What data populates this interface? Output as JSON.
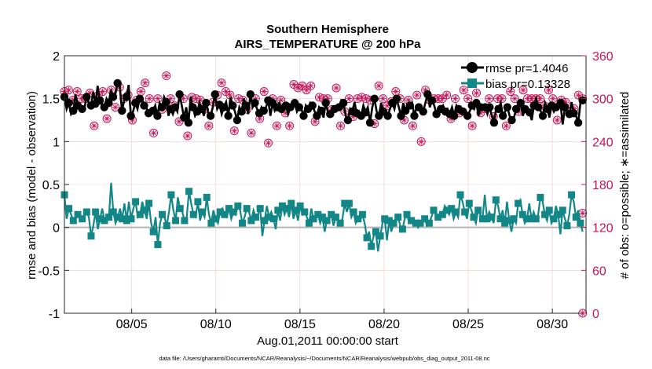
{
  "chart_data": {
    "type": "line",
    "title_line1": "Southern Hemisphere",
    "title_line2": "AIRS_TEMPERATURE @ 200 hPa",
    "xlabel": "Aug.01,2011 00:00:00 start",
    "ylabel_left": "rmse and bias (model - observation)",
    "ylabel_right": "# of obs: o=possible; ∗=assimilated",
    "footnote": "data file: /Users/gharamti/Documents/NCAR/Reanalysis/~/Documents/NCAR/Reanalysis/webpub/obs_diag_output_2011-08.nc",
    "x_range": [
      1,
      32
    ],
    "x_ticks": [
      5,
      10,
      15,
      20,
      25,
      30
    ],
    "x_tick_labels": [
      "08/05",
      "08/10",
      "08/15",
      "08/20",
      "08/25",
      "08/30"
    ],
    "ylim_left": [
      -1,
      2
    ],
    "y_ticks_left": [
      -1,
      -0.5,
      0,
      0.5,
      1,
      1.5,
      2
    ],
    "y_tick_labels_left": [
      "-1",
      "-0.5",
      "0",
      "0.5",
      "1",
      "1.5",
      "2"
    ],
    "ylim_right": [
      0,
      360
    ],
    "y_ticks_right": [
      0,
      60,
      120,
      180,
      240,
      300,
      360
    ],
    "y_tick_labels_right": [
      "0",
      "60",
      "120",
      "180",
      "240",
      "300",
      "360"
    ],
    "grid": true,
    "legend_placement": "top-right",
    "colors": {
      "rmse": "#000000",
      "bias": "#138787",
      "obs": "#c8145a",
      "zero_line": "#b4b4b4",
      "grid": "#f0c8c8"
    },
    "series": [
      {
        "name": "rmse pr=1.4046",
        "axis": "left",
        "values": [
          1.52,
          1.38,
          1.45,
          1.32,
          1.36,
          1.55,
          1.42,
          1.4,
          1.38,
          1.38,
          1.52,
          1.45,
          1.42,
          1.58,
          1.44,
          1.65,
          1.48,
          1.42,
          1.4,
          1.5,
          1.45,
          1.6,
          1.52,
          1.55,
          1.68,
          1.64,
          1.36,
          1.48,
          1.52,
          1.66,
          1.3,
          1.35,
          1.45,
          1.38,
          1.5,
          1.5,
          1.42,
          1.4,
          1.33,
          1.38,
          1.36,
          1.42,
          1.3,
          1.45,
          1.4,
          1.52,
          1.46,
          1.3,
          1.38,
          1.32,
          1.4,
          1.35,
          1.55,
          1.42,
          1.28,
          1.4,
          1.22,
          1.52,
          1.4,
          1.3,
          1.35,
          1.45,
          1.38,
          1.3,
          1.45,
          1.33,
          1.3,
          1.4,
          1.55,
          1.38,
          1.43,
          1.32,
          1.4,
          1.46,
          1.3,
          1.52,
          1.42,
          1.35,
          1.25,
          1.4,
          1.35,
          1.5,
          1.42,
          1.32,
          1.55,
          1.4,
          1.45,
          1.38,
          1.33,
          1.4,
          1.36,
          1.4,
          1.48,
          1.3,
          1.45,
          1.36,
          1.4,
          1.45,
          1.38,
          1.4,
          1.42,
          1.32,
          1.4,
          1.38,
          1.45,
          1.35,
          1.4,
          1.38,
          1.3,
          1.42,
          1.38,
          1.45,
          1.42,
          1.35,
          1.3,
          1.4,
          1.36,
          1.28,
          1.45,
          1.34,
          1.32,
          1.4,
          1.38,
          1.36,
          1.4,
          1.48,
          1.45,
          1.3,
          1.25,
          1.38,
          1.35,
          1.46,
          1.33,
          1.35,
          1.3,
          1.42,
          1.34,
          1.4,
          1.22,
          1.4,
          1.5,
          1.35,
          1.3,
          1.45,
          1.35,
          1.3,
          1.3,
          1.38,
          1.45,
          1.38,
          1.5,
          1.4,
          1.3,
          1.45,
          1.36,
          1.38,
          1.42,
          1.45,
          1.3,
          1.4,
          1.4,
          1.34,
          1.35,
          1.45,
          1.55,
          1.4,
          1.48,
          1.42,
          1.32,
          1.4,
          1.38,
          1.42,
          1.35,
          1.38,
          1.32,
          1.4,
          1.3,
          1.42,
          1.38,
          1.4,
          1.35,
          1.3,
          1.3,
          1.35,
          1.42,
          1.38,
          1.45,
          1.3,
          1.4,
          1.38,
          1.4,
          1.32,
          1.4,
          1.3,
          1.22,
          1.4,
          1.38,
          1.45,
          1.3,
          1.35,
          1.4,
          1.3,
          1.25,
          1.28,
          1.38,
          1.4,
          1.45,
          1.3,
          1.38,
          1.35,
          1.34,
          1.25,
          1.42,
          1.5,
          1.4,
          1.36,
          1.3,
          1.45,
          1.38,
          1.28,
          1.42,
          1.35,
          1.4,
          1.38,
          1.45,
          1.2,
          1.4,
          1.35,
          1.32,
          1.46,
          1.33,
          1.3,
          1.22,
          1.45,
          1.48
        ]
      },
      {
        "name": "bias pr=0.13328",
        "axis": "left",
        "values": [
          0.38,
          0.1,
          0.22,
          0.15,
          0.08,
          0.1,
          0.15,
          0.12,
          0.1,
          0.15,
          0.18,
          0.12,
          -0.1,
          0.02,
          0.18,
          -0.02,
          0.1,
          0.22,
          0.08,
          0.1,
          0.12,
          0.52,
          0.18,
          0.05,
          0.12,
          0.22,
          0.1,
          0.28,
          0.08,
          0.3,
          0.1,
          0.22,
          0.3,
          0.12,
          0.15,
          0.3,
          0.2,
          0.1,
          0.28,
          0.05,
          -0.05,
          0.12,
          -0.2,
          0.05,
          0.15,
          0.12,
          0.02,
          0.18,
          0.38,
          0.2,
          0.08,
          0.35,
          0.22,
          0.18,
          0.08,
          0.12,
          0.42,
          0.28,
          0.15,
          0.12,
          0.3,
          0.08,
          0.18,
          0.12,
          0.35,
          0.15,
          0.05,
          0.2,
          0.1,
          0.05,
          0.18,
          0.22,
          0.15,
          0.12,
          0.22,
          0.1,
          0.18,
          0.15,
          0.25,
          0.2,
          0.05,
          0.12,
          0.22,
          0.18,
          0.08,
          0.2,
          0.12,
          0.15,
          0.22,
          -0.1,
          0.08,
          0.25,
          0.12,
          0.18,
          0.1,
          -0.02,
          0.2,
          0.08,
          0.25,
          0.15,
          0.22,
          0.12,
          0.28,
          0.1,
          0.2,
          0.08,
          0.25,
          0.15,
          0.18,
          0.12,
          0.05,
          0.22,
          0.1,
          0.12,
          0.15,
          0.05,
          0.12,
          -0.05,
          0.08,
          0.1,
          0.15,
          0.02,
          0.12,
          0.08,
          0.05,
          0.1,
          0.28,
          0.18,
          0.28,
          0.12,
          0.18,
          0.05,
          0.1,
          0.08,
          0.15,
          0.05,
          -0.12,
          -0.05,
          -0.22,
          -0.1,
          -0.05,
          -0.28,
          -0.1,
          0.05,
          0.1,
          -0.15,
          0.08,
          -0.05,
          0.05,
          0.1,
          0.12,
          0.02,
          -0.02,
          0.1,
          0.15,
          0.05,
          0.08,
          0.02,
          0.05,
          0.0,
          0.05,
          0.08,
          0.1,
          0.02,
          0.05,
          0.12,
          0.2,
          0.15,
          0.12,
          0.1,
          0.15,
          0.25,
          0.2,
          0.15,
          0.22,
          0.1,
          0.18,
          0.12,
          0.38,
          0.3,
          0.18,
          0.1,
          0.28,
          0.2,
          0.12,
          0.05,
          0.2,
          0.15,
          0.1,
          0.38,
          0.1,
          0.18,
          0.12,
          0.05,
          0.32,
          0.25,
          0.1,
          0.2,
          0.05,
          0.3,
          0.08,
          -0.05,
          0.1,
          0.05,
          0.28,
          0.32,
          0.15,
          0.05,
          0.1,
          0.28,
          0.1,
          0.18,
          0.1,
          0.15,
          0.35,
          0.3,
          0.15,
          0.08,
          0.2,
          0.05,
          0.1,
          0.25,
          0.15,
          -0.08,
          0.2,
          0.1,
          0.02,
          0.15,
          0.38,
          0.3,
          0.12,
          0.2,
          0.05,
          -0.05
        ]
      },
      {
        "name": "obs possible",
        "axis": "right",
        "marker": "circle",
        "values": [
          310,
          242,
          312,
          305,
          298,
          300,
          310,
          268,
          300,
          328,
          300,
          268,
          308,
          302,
          262,
          300,
          305,
          236,
          310,
          278,
          272,
          318,
          312,
          268,
          288,
          300,
          316,
          262,
          300,
          282,
          305,
          325,
          270,
          252,
          298,
          300,
          310,
          270,
          322,
          285,
          300,
          312,
          252,
          312,
          300,
          306,
          285,
          298,
          332,
          310,
          300,
          280,
          290,
          300,
          268,
          314,
          300,
          292,
          248,
          310,
          302,
          268,
          300,
          312,
          298,
          300,
          285,
          270,
          262,
          300,
          295,
          252,
          305,
          300,
          322,
          260,
          310,
          308,
          305,
          300,
          255,
          312,
          300,
          320,
          298,
          300,
          285,
          300,
          252,
          305,
          300,
          285,
          272,
          282,
          310,
          318,
          238,
          262,
          300,
          292,
          262,
          305,
          298,
          308,
          280,
          270,
          262,
          300,
          320,
          302,
          315,
          300,
          318,
          280,
          312,
          298,
          318,
          305,
          268,
          300,
          302,
          310,
          300,
          288,
          300,
          312,
          285,
          300,
          315,
          298,
          262,
          300,
          282,
          270,
          300,
          305,
          275,
          310,
          300,
          318,
          302,
          276,
          300,
          305,
          298,
          312,
          265,
          300,
          318,
          280,
          300,
          292,
          290,
          312,
          296,
          300,
          310,
          305,
          300,
          282,
          270,
          316,
          298,
          300,
          262,
          280,
          305,
          282,
          240,
          300,
          312,
          300,
          298,
          268,
          300,
          310,
          300,
          240,
          300,
          285,
          305,
          312,
          272,
          298,
          300,
          268,
          280,
          300,
          312,
          298,
          300,
          270,
          262,
          300,
          308,
          298,
          280,
          300,
          286,
          298,
          300,
          270,
          275,
          322,
          300,
          268,
          300,
          305,
          262,
          300,
          310,
          298,
          300,
          292,
          282,
          300,
          312,
          276,
          300,
          290,
          300,
          268,
          300,
          305,
          300,
          282,
          290,
          300,
          312,
          278,
          300,
          305,
          270,
          300,
          298,
          310,
          295,
          300,
          282,
          270,
          286,
          300,
          305,
          290,
          300
        ],
        "note_endpoints": [
          {
            "x": 31.8,
            "y": 140
          },
          {
            "x": 31.8,
            "y": 0
          }
        ]
      },
      {
        "name": "obs assimilated",
        "axis": "right",
        "marker": "star",
        "values": [
          310,
          242,
          312,
          305,
          298,
          300,
          310,
          268,
          300,
          328,
          300,
          268,
          308,
          302,
          262,
          300,
          305,
          236,
          310,
          278,
          272,
          318,
          312,
          268,
          288,
          300,
          316,
          262,
          300,
          282,
          305,
          325,
          270,
          252,
          298,
          300,
          310,
          270,
          322,
          285,
          300,
          312,
          252,
          312,
          300,
          306,
          285,
          298,
          332,
          310,
          300,
          280,
          290,
          300,
          268,
          314,
          300,
          292,
          248,
          310,
          302,
          268,
          300,
          312,
          298,
          300,
          285,
          270,
          262,
          300,
          295,
          252,
          305,
          300,
          322,
          260,
          310,
          308,
          305,
          300,
          255,
          312,
          300,
          320,
          298,
          300,
          285,
          300,
          252,
          305,
          300,
          285,
          272,
          282,
          310,
          318,
          238,
          262,
          300,
          292,
          262,
          305,
          298,
          308,
          280,
          270,
          262,
          300,
          320,
          302,
          315,
          300,
          318,
          280,
          312,
          298,
          318,
          305,
          268,
          300,
          302,
          310,
          300,
          288,
          300,
          312,
          285,
          300,
          315,
          298,
          262,
          300,
          282,
          270,
          300,
          305,
          275,
          310,
          300,
          318,
          302,
          276,
          300,
          305,
          298,
          312,
          265,
          300,
          318,
          280,
          300,
          292,
          290,
          312,
          296,
          300,
          310,
          305,
          300,
          282,
          270,
          316,
          298,
          300,
          262,
          280,
          305,
          282,
          240,
          300,
          312,
          300,
          298,
          268,
          300,
          310,
          300,
          240,
          300,
          285,
          305,
          312,
          272,
          298,
          300,
          268,
          280,
          300,
          312,
          298,
          300,
          270,
          262,
          300,
          308,
          298,
          280,
          300,
          286,
          298,
          300,
          270,
          275,
          322,
          300,
          268,
          300,
          305,
          262,
          300,
          310,
          298,
          300,
          292,
          282,
          300,
          312,
          276,
          300,
          290,
          300,
          268,
          300,
          305,
          300,
          282,
          290,
          300,
          312,
          278,
          300,
          305,
          270,
          300,
          298,
          310,
          295,
          300,
          282,
          270,
          286,
          300,
          305,
          290,
          300
        ]
      }
    ]
  }
}
